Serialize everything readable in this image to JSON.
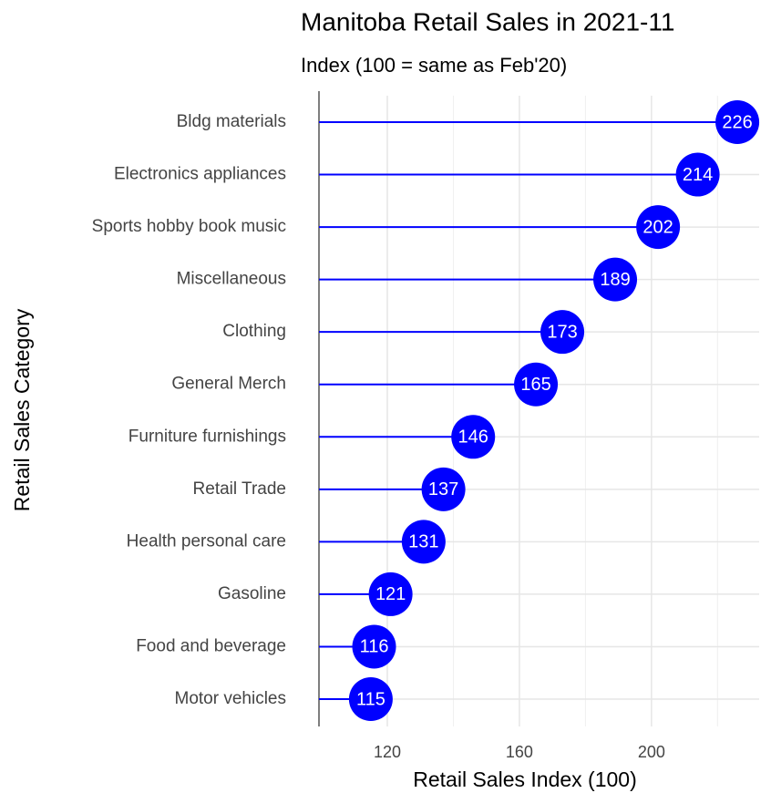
{
  "chart_data": {
    "type": "lollipop",
    "title": "Manitoba Retail Sales in 2021-11",
    "subtitle": "Index (100 = same as Feb'20)",
    "x_label": "Retail Sales Index (100)",
    "y_label": "Retail Sales Category",
    "categories": [
      "Bldg materials",
      "Electronics appliances",
      "Sports hobby book music",
      "Miscellaneous",
      "Clothing",
      "General Merch",
      "Furniture furnishings",
      "Retail Trade",
      "Health personal care",
      "Gasoline",
      "Food and beverage",
      "Motor vehicles"
    ],
    "values": [
      226,
      214,
      202,
      189,
      173,
      165,
      146,
      137,
      131,
      121,
      116,
      115
    ],
    "color": "#0000ff",
    "xlim": [
      99.3,
      232.6
    ],
    "xticks": [
      120,
      160,
      200
    ],
    "xminor": [
      140,
      180,
      220
    ],
    "grid": true
  }
}
